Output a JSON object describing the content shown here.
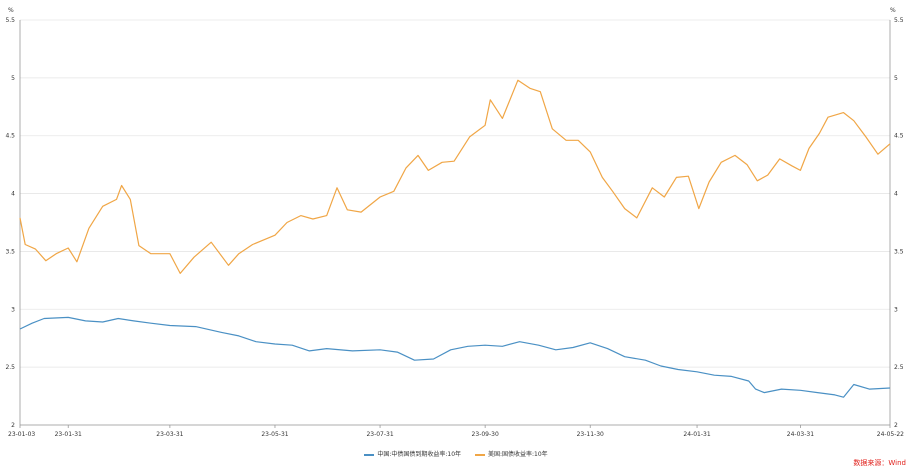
{
  "chart_data": {
    "type": "line",
    "y_unit_left": "%",
    "y_unit_right": "%",
    "ylim": [
      2,
      5.5
    ],
    "yticks": [
      "2",
      "2.5",
      "3",
      "3.5",
      "4",
      "4.5",
      "5",
      "5.5"
    ],
    "grid": "horizontal",
    "x_ticks": [
      "23-01-03",
      "23-01-31",
      "23-03-31",
      "23-05-31",
      "23-07-31",
      "23-09-30",
      "23-11-30",
      "24-01-31",
      "24-03-31",
      "24-05-22"
    ],
    "x_range": [
      "2023-01-03",
      "2024-05-22"
    ],
    "legend_position": "bottom",
    "series": [
      {
        "name": "中国:中债国债到期收益率:10年",
        "color": "#4a90c4",
        "points": [
          [
            "2023-01-03",
            2.83
          ],
          [
            "2023-01-10",
            2.88
          ],
          [
            "2023-01-17",
            2.92
          ],
          [
            "2023-01-31",
            2.93
          ],
          [
            "2023-02-10",
            2.9
          ],
          [
            "2023-02-20",
            2.89
          ],
          [
            "2023-03-01",
            2.92
          ],
          [
            "2023-03-10",
            2.9
          ],
          [
            "2023-03-20",
            2.88
          ],
          [
            "2023-03-31",
            2.86
          ],
          [
            "2023-04-15",
            2.85
          ],
          [
            "2023-04-30",
            2.8
          ],
          [
            "2023-05-10",
            2.77
          ],
          [
            "2023-05-20",
            2.72
          ],
          [
            "2023-05-31",
            2.7
          ],
          [
            "2023-06-10",
            2.69
          ],
          [
            "2023-06-20",
            2.64
          ],
          [
            "2023-06-30",
            2.66
          ],
          [
            "2023-07-15",
            2.64
          ],
          [
            "2023-07-31",
            2.65
          ],
          [
            "2023-08-10",
            2.63
          ],
          [
            "2023-08-20",
            2.56
          ],
          [
            "2023-08-31",
            2.57
          ],
          [
            "2023-09-10",
            2.65
          ],
          [
            "2023-09-20",
            2.68
          ],
          [
            "2023-09-30",
            2.69
          ],
          [
            "2023-10-10",
            2.68
          ],
          [
            "2023-10-20",
            2.72
          ],
          [
            "2023-10-31",
            2.69
          ],
          [
            "2023-11-10",
            2.65
          ],
          [
            "2023-11-20",
            2.67
          ],
          [
            "2023-11-30",
            2.71
          ],
          [
            "2023-12-10",
            2.66
          ],
          [
            "2023-12-20",
            2.59
          ],
          [
            "2024-01-01",
            2.56
          ],
          [
            "2024-01-10",
            2.51
          ],
          [
            "2024-01-20",
            2.48
          ],
          [
            "2024-01-31",
            2.46
          ],
          [
            "2024-02-10",
            2.43
          ],
          [
            "2024-02-20",
            2.42
          ],
          [
            "2024-03-01",
            2.38
          ],
          [
            "2024-03-05",
            2.31
          ],
          [
            "2024-03-10",
            2.28
          ],
          [
            "2024-03-20",
            2.31
          ],
          [
            "2024-03-31",
            2.3
          ],
          [
            "2024-04-10",
            2.28
          ],
          [
            "2024-04-20",
            2.26
          ],
          [
            "2024-04-25",
            2.24
          ],
          [
            "2024-05-01",
            2.35
          ],
          [
            "2024-05-10",
            2.31
          ],
          [
            "2024-05-22",
            2.32
          ]
        ]
      },
      {
        "name": "美国:国债收益率:10年",
        "color": "#f0a646",
        "points": [
          [
            "2023-01-03",
            3.79
          ],
          [
            "2023-01-06",
            3.56
          ],
          [
            "2023-01-12",
            3.52
          ],
          [
            "2023-01-18",
            3.42
          ],
          [
            "2023-01-24",
            3.48
          ],
          [
            "2023-01-31",
            3.53
          ],
          [
            "2023-02-05",
            3.41
          ],
          [
            "2023-02-12",
            3.7
          ],
          [
            "2023-02-20",
            3.89
          ],
          [
            "2023-02-28",
            3.95
          ],
          [
            "2023-03-03",
            4.07
          ],
          [
            "2023-03-08",
            3.95
          ],
          [
            "2023-03-13",
            3.55
          ],
          [
            "2023-03-20",
            3.48
          ],
          [
            "2023-03-31",
            3.48
          ],
          [
            "2023-04-06",
            3.31
          ],
          [
            "2023-04-14",
            3.45
          ],
          [
            "2023-04-24",
            3.58
          ],
          [
            "2023-05-04",
            3.38
          ],
          [
            "2023-05-10",
            3.48
          ],
          [
            "2023-05-18",
            3.56
          ],
          [
            "2023-05-31",
            3.64
          ],
          [
            "2023-06-07",
            3.75
          ],
          [
            "2023-06-15",
            3.81
          ],
          [
            "2023-06-22",
            3.78
          ],
          [
            "2023-06-30",
            3.81
          ],
          [
            "2023-07-06",
            4.05
          ],
          [
            "2023-07-12",
            3.86
          ],
          [
            "2023-07-20",
            3.84
          ],
          [
            "2023-07-31",
            3.97
          ],
          [
            "2023-08-08",
            4.02
          ],
          [
            "2023-08-15",
            4.22
          ],
          [
            "2023-08-22",
            4.33
          ],
          [
            "2023-08-28",
            4.2
          ],
          [
            "2023-09-05",
            4.27
          ],
          [
            "2023-09-12",
            4.28
          ],
          [
            "2023-09-21",
            4.49
          ],
          [
            "2023-09-30",
            4.59
          ],
          [
            "2023-10-03",
            4.81
          ],
          [
            "2023-10-10",
            4.65
          ],
          [
            "2023-10-19",
            4.98
          ],
          [
            "2023-10-26",
            4.91
          ],
          [
            "2023-11-01",
            4.88
          ],
          [
            "2023-11-08",
            4.56
          ],
          [
            "2023-11-16",
            4.46
          ],
          [
            "2023-11-23",
            4.46
          ],
          [
            "2023-11-30",
            4.36
          ],
          [
            "2023-12-07",
            4.14
          ],
          [
            "2023-12-13",
            4.02
          ],
          [
            "2023-12-20",
            3.87
          ],
          [
            "2023-12-27",
            3.79
          ],
          [
            "2024-01-05",
            4.05
          ],
          [
            "2024-01-12",
            3.97
          ],
          [
            "2024-01-19",
            4.14
          ],
          [
            "2024-01-26",
            4.15
          ],
          [
            "2024-02-01",
            3.87
          ],
          [
            "2024-02-07",
            4.1
          ],
          [
            "2024-02-14",
            4.27
          ],
          [
            "2024-02-22",
            4.33
          ],
          [
            "2024-02-29",
            4.25
          ],
          [
            "2024-03-06",
            4.11
          ],
          [
            "2024-03-12",
            4.16
          ],
          [
            "2024-03-19",
            4.3
          ],
          [
            "2024-03-26",
            4.24
          ],
          [
            "2024-03-31",
            4.2
          ],
          [
            "2024-04-05",
            4.39
          ],
          [
            "2024-04-11",
            4.52
          ],
          [
            "2024-04-16",
            4.66
          ],
          [
            "2024-04-25",
            4.7
          ],
          [
            "2024-05-01",
            4.63
          ],
          [
            "2024-05-08",
            4.49
          ],
          [
            "2024-05-15",
            4.34
          ],
          [
            "2024-05-22",
            4.43
          ]
        ]
      }
    ],
    "source": "数据来源：Wind"
  }
}
